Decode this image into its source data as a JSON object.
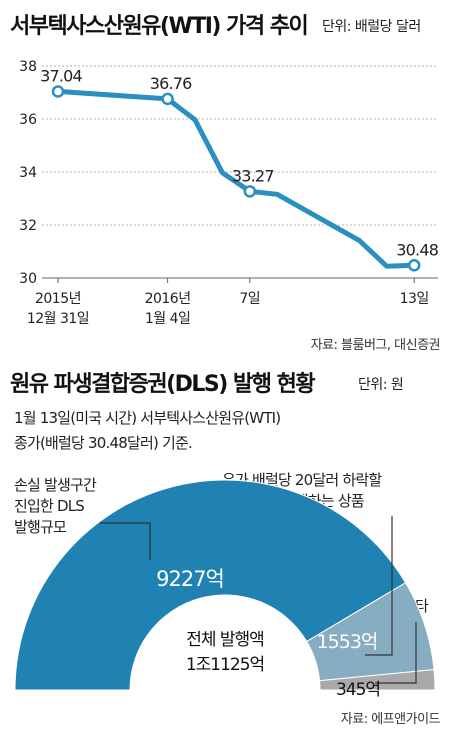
{
  "line_chart": {
    "title": "서부텍사스산원유(WTI) 가격 추이",
    "unit": "단위: 배럴당 달러",
    "source": "자료: 블룸버그, 대신증권"
  },
  "dls_chart": {
    "title": "원유 파생결합증권(DLS) 발행 현황",
    "unit": "단위: 원",
    "note_line1": "1월 13일(미국 시간) 서부텍사스산원유(WTI)",
    "note_line2": "종가(배럴당 30.48달러) 기준.",
    "source": "자료: 에프앤가이드",
    "center_label_line1": "전체 발행액",
    "center_label_line2": "1조1125억",
    "annotations": {
      "loss_line1": "손실 발생구간",
      "loss_line2": "진입한 DLS",
      "loss_line3": "발행규모",
      "risk_line1": "유가 배럴당 20달러 하락할",
      "risk_line2": "경우 손실 발생하는 상품",
      "other": "기타"
    }
  },
  "colors": {
    "line": "#2b8fbf",
    "grid": "#b5b5b5",
    "seg_loss": "#1f82b3",
    "seg_risk": "#87adc3",
    "seg_other": "#a9a9a9"
  },
  "chart_data": [
    {
      "type": "line",
      "title": "서부텍사스산원유(WTI) 가격 추이",
      "ylabel": "단위: 배럴당 달러",
      "ylim": [
        30,
        38
      ],
      "yticks": [
        30,
        32,
        34,
        36,
        38
      ],
      "xtick_labels": [
        {
          "text": [
            "2015년",
            "12월 31일"
          ],
          "x": 0
        },
        {
          "text": [
            "2016년",
            "1월 4일"
          ],
          "x": 4
        },
        {
          "text": [
            "7일"
          ],
          "x": 7
        },
        {
          "text": [
            "13일"
          ],
          "x": 13
        }
      ],
      "grid": true,
      "series": [
        {
          "points": [
            {
              "x": 0,
              "y": 37.04,
              "label": "37.04"
            },
            {
              "x": 4,
              "y": 36.76,
              "label": "36.76"
            },
            {
              "x": 5,
              "y": 35.97
            },
            {
              "x": 6,
              "y": 33.97
            },
            {
              "x": 7,
              "y": 33.27,
              "label": "33.27"
            },
            {
              "x": 8,
              "y": 33.16
            },
            {
              "x": 11,
              "y": 31.41
            },
            {
              "x": 12,
              "y": 30.44
            },
            {
              "x": 13,
              "y": 30.48,
              "label": "30.48"
            }
          ]
        }
      ]
    },
    {
      "type": "pie",
      "title": "원유 파생결합증권(DLS) 발행 현황",
      "total_label": "1조1125억",
      "slices": [
        {
          "label": "9227억",
          "value": 9227
        },
        {
          "label": "1553억",
          "value": 1553
        },
        {
          "label": "345억",
          "value": 345
        }
      ]
    }
  ]
}
